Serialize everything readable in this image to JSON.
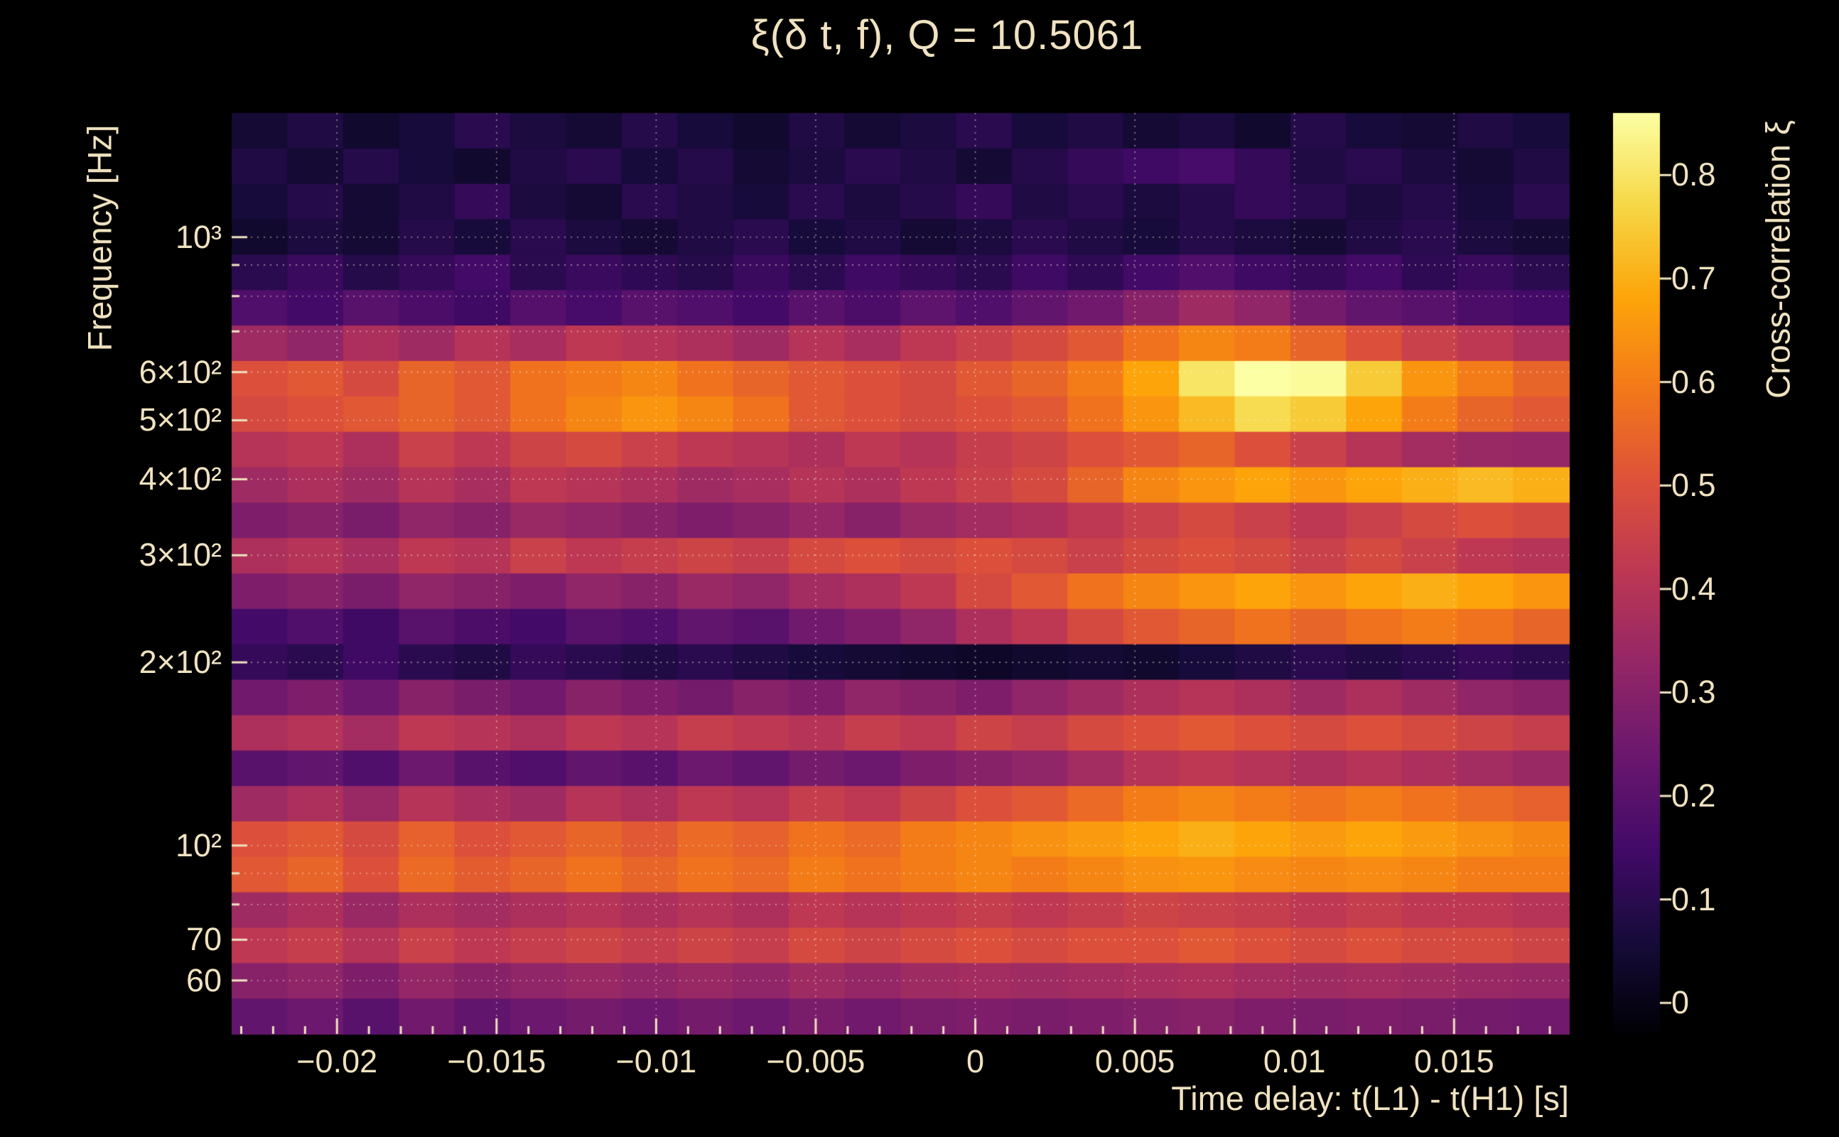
{
  "colors": {
    "background": "#000000",
    "text": "#f0e2c0",
    "grid": "rgba(250,242,222,0.55)"
  },
  "chart_data": {
    "type": "heatmap",
    "title": "ξ(δ t, f), Q = 10.5061",
    "q_value": 10.5061,
    "xlabel": "Time delay: t(L1) - t(H1) [s]",
    "ylabel": "Frequency [Hz]",
    "colorbar_label": "Cross-correlation ξ",
    "y_scale": "log",
    "x_range": [
      -0.0233,
      0.0186
    ],
    "y_range_hz": [
      49,
      1600
    ],
    "color_range": [
      -0.03,
      0.86
    ],
    "x_ticks": [
      -0.02,
      -0.015,
      -0.01,
      -0.005,
      0,
      0.005,
      0.01,
      0.015
    ],
    "x_tick_labels": [
      "−0.02",
      "−0.015",
      "−0.01",
      "−0.005",
      "0",
      "0.005",
      "0.01",
      "0.015"
    ],
    "y_ticks": [
      1000,
      600,
      500,
      400,
      300,
      200,
      100,
      70,
      60
    ],
    "y_tick_labels": [
      "10³",
      "6×10²",
      "5×10²",
      "4×10²",
      "3×10²",
      "2×10²",
      "10²",
      "70",
      "60"
    ],
    "y_gridlines": [
      60,
      70,
      80,
      90,
      100,
      200,
      300,
      400,
      500,
      600,
      700,
      800,
      900,
      1000
    ],
    "colorbar_ticks": [
      0,
      0.1,
      0.2,
      0.3,
      0.4,
      0.5,
      0.6,
      0.7,
      0.8
    ],
    "colorbar_tick_labels": [
      "0",
      "0.1",
      "0.2",
      "0.3",
      "0.4",
      "0.5",
      "0.6",
      "0.7",
      "0.8"
    ],
    "colormap": "inferno",
    "colormap_stops": [
      [
        0.0,
        [
          0,
          0,
          4
        ]
      ],
      [
        0.1,
        [
          22,
          11,
          57
        ]
      ],
      [
        0.2,
        [
          66,
          10,
          104
        ]
      ],
      [
        0.3,
        [
          106,
          23,
          110
        ]
      ],
      [
        0.4,
        [
          147,
          38,
          103
        ]
      ],
      [
        0.5,
        [
          188,
          55,
          84
        ]
      ],
      [
        0.6,
        [
          221,
          81,
          58
        ]
      ],
      [
        0.7,
        [
          243,
          120,
          25
        ]
      ],
      [
        0.8,
        [
          252,
          165,
          10
        ]
      ],
      [
        0.9,
        [
          246,
          215,
          70
        ]
      ],
      [
        1.0,
        [
          252,
          255,
          164
        ]
      ]
    ],
    "freq_row_centers_hz": [
      1496,
      1309,
      1144,
      1001,
      875,
      765,
      669,
      585,
      512,
      448,
      391,
      342,
      299,
      262,
      229,
      200,
      175,
      153,
      134,
      117,
      102,
      90,
      78,
      69,
      60,
      52
    ],
    "time_col_centers_s": [
      -0.02243,
      -0.02068,
      -0.01894,
      -0.01719,
      -0.01544,
      -0.0137,
      -0.01195,
      -0.01021,
      -0.00846,
      -0.00671,
      -0.00497,
      -0.00322,
      -0.00148,
      0.00027,
      0.00202,
      0.00376,
      0.00551,
      0.00725,
      0.009,
      0.01075,
      0.01249,
      0.01424,
      0.01598,
      0.01773
    ],
    "values": [
      [
        0.05,
        0.08,
        0.04,
        0.06,
        0.1,
        0.07,
        0.05,
        0.09,
        0.06,
        0.04,
        0.08,
        0.05,
        0.07,
        0.1,
        0.06,
        0.08,
        0.05,
        0.07,
        0.04,
        0.09,
        0.06,
        0.05,
        0.08,
        0.06
      ],
      [
        0.08,
        0.05,
        0.09,
        0.06,
        0.04,
        0.08,
        0.1,
        0.06,
        0.09,
        0.05,
        0.07,
        0.1,
        0.08,
        0.05,
        0.09,
        0.12,
        0.14,
        0.16,
        0.12,
        0.08,
        0.1,
        0.07,
        0.05,
        0.08
      ],
      [
        0.06,
        0.09,
        0.05,
        0.08,
        0.12,
        0.07,
        0.05,
        0.1,
        0.08,
        0.06,
        0.1,
        0.07,
        0.09,
        0.12,
        0.08,
        0.1,
        0.07,
        0.09,
        0.12,
        0.1,
        0.07,
        0.09,
        0.06,
        0.1
      ],
      [
        0.04,
        0.07,
        0.05,
        0.09,
        0.06,
        0.1,
        0.07,
        0.05,
        0.08,
        0.1,
        0.06,
        0.08,
        0.05,
        0.07,
        0.1,
        0.08,
        0.06,
        0.09,
        0.07,
        0.05,
        0.08,
        0.1,
        0.07,
        0.05
      ],
      [
        0.1,
        0.13,
        0.09,
        0.12,
        0.15,
        0.1,
        0.13,
        0.11,
        0.09,
        0.13,
        0.1,
        0.14,
        0.12,
        0.1,
        0.14,
        0.11,
        0.15,
        0.18,
        0.14,
        0.12,
        0.15,
        0.11,
        0.13,
        0.1
      ],
      [
        0.18,
        0.15,
        0.2,
        0.17,
        0.14,
        0.19,
        0.16,
        0.2,
        0.18,
        0.15,
        0.2,
        0.17,
        0.21,
        0.18,
        0.22,
        0.25,
        0.3,
        0.35,
        0.32,
        0.26,
        0.22,
        0.2,
        0.17,
        0.15
      ],
      [
        0.35,
        0.32,
        0.38,
        0.35,
        0.4,
        0.37,
        0.42,
        0.4,
        0.38,
        0.35,
        0.4,
        0.37,
        0.42,
        0.45,
        0.48,
        0.52,
        0.58,
        0.62,
        0.6,
        0.55,
        0.5,
        0.45,
        0.42,
        0.38
      ],
      [
        0.5,
        0.52,
        0.48,
        0.55,
        0.52,
        0.58,
        0.6,
        0.62,
        0.58,
        0.55,
        0.52,
        0.5,
        0.48,
        0.52,
        0.55,
        0.6,
        0.68,
        0.8,
        0.88,
        0.85,
        0.75,
        0.65,
        0.6,
        0.55
      ],
      [
        0.48,
        0.5,
        0.52,
        0.55,
        0.52,
        0.58,
        0.62,
        0.65,
        0.62,
        0.58,
        0.52,
        0.5,
        0.48,
        0.5,
        0.52,
        0.58,
        0.65,
        0.72,
        0.78,
        0.75,
        0.68,
        0.6,
        0.55,
        0.52
      ],
      [
        0.4,
        0.42,
        0.38,
        0.45,
        0.42,
        0.46,
        0.48,
        0.45,
        0.42,
        0.4,
        0.38,
        0.42,
        0.4,
        0.44,
        0.46,
        0.5,
        0.52,
        0.55,
        0.5,
        0.45,
        0.4,
        0.36,
        0.34,
        0.33
      ],
      [
        0.35,
        0.38,
        0.35,
        0.4,
        0.37,
        0.42,
        0.4,
        0.38,
        0.35,
        0.37,
        0.4,
        0.38,
        0.42,
        0.45,
        0.48,
        0.55,
        0.62,
        0.65,
        0.68,
        0.65,
        0.68,
        0.7,
        0.72,
        0.7
      ],
      [
        0.28,
        0.3,
        0.27,
        0.32,
        0.3,
        0.34,
        0.32,
        0.3,
        0.28,
        0.3,
        0.33,
        0.3,
        0.34,
        0.36,
        0.38,
        0.42,
        0.45,
        0.48,
        0.45,
        0.42,
        0.45,
        0.48,
        0.5,
        0.48
      ],
      [
        0.38,
        0.4,
        0.37,
        0.42,
        0.4,
        0.45,
        0.42,
        0.44,
        0.46,
        0.44,
        0.48,
        0.5,
        0.48,
        0.5,
        0.48,
        0.45,
        0.48,
        0.5,
        0.48,
        0.45,
        0.48,
        0.45,
        0.42,
        0.4
      ],
      [
        0.28,
        0.3,
        0.27,
        0.32,
        0.3,
        0.28,
        0.32,
        0.3,
        0.34,
        0.32,
        0.36,
        0.38,
        0.42,
        0.48,
        0.52,
        0.58,
        0.62,
        0.65,
        0.68,
        0.65,
        0.68,
        0.7,
        0.68,
        0.65
      ],
      [
        0.15,
        0.18,
        0.14,
        0.2,
        0.17,
        0.15,
        0.2,
        0.18,
        0.22,
        0.2,
        0.25,
        0.28,
        0.32,
        0.38,
        0.42,
        0.48,
        0.52,
        0.55,
        0.58,
        0.55,
        0.58,
        0.6,
        0.58,
        0.55
      ],
      [
        0.12,
        0.1,
        0.14,
        0.1,
        0.08,
        0.12,
        0.1,
        0.08,
        0.1,
        0.08,
        0.06,
        0.05,
        0.04,
        0.03,
        0.04,
        0.05,
        0.04,
        0.06,
        0.08,
        0.1,
        0.08,
        0.1,
        0.12,
        0.1
      ],
      [
        0.25,
        0.28,
        0.24,
        0.3,
        0.27,
        0.25,
        0.3,
        0.28,
        0.26,
        0.3,
        0.28,
        0.32,
        0.3,
        0.28,
        0.32,
        0.35,
        0.38,
        0.4,
        0.38,
        0.35,
        0.38,
        0.35,
        0.32,
        0.3
      ],
      [
        0.38,
        0.4,
        0.36,
        0.42,
        0.4,
        0.38,
        0.42,
        0.4,
        0.44,
        0.42,
        0.4,
        0.44,
        0.42,
        0.46,
        0.44,
        0.48,
        0.5,
        0.52,
        0.5,
        0.48,
        0.5,
        0.48,
        0.46,
        0.44
      ],
      [
        0.2,
        0.22,
        0.18,
        0.24,
        0.2,
        0.18,
        0.22,
        0.2,
        0.24,
        0.22,
        0.26,
        0.24,
        0.28,
        0.3,
        0.32,
        0.36,
        0.4,
        0.42,
        0.4,
        0.38,
        0.4,
        0.38,
        0.36,
        0.34
      ],
      [
        0.35,
        0.38,
        0.34,
        0.4,
        0.37,
        0.35,
        0.4,
        0.38,
        0.42,
        0.4,
        0.44,
        0.42,
        0.46,
        0.5,
        0.52,
        0.56,
        0.6,
        0.62,
        0.6,
        0.58,
        0.6,
        0.58,
        0.56,
        0.54
      ],
      [
        0.5,
        0.52,
        0.48,
        0.54,
        0.5,
        0.52,
        0.55,
        0.52,
        0.56,
        0.54,
        0.58,
        0.56,
        0.6,
        0.62,
        0.64,
        0.66,
        0.68,
        0.7,
        0.68,
        0.66,
        0.68,
        0.66,
        0.64,
        0.62
      ],
      [
        0.52,
        0.55,
        0.5,
        0.56,
        0.53,
        0.55,
        0.58,
        0.55,
        0.58,
        0.56,
        0.6,
        0.58,
        0.6,
        0.62,
        0.6,
        0.62,
        0.64,
        0.65,
        0.63,
        0.62,
        0.63,
        0.62,
        0.6,
        0.6
      ],
      [
        0.35,
        0.38,
        0.34,
        0.38,
        0.36,
        0.38,
        0.4,
        0.38,
        0.4,
        0.38,
        0.42,
        0.4,
        0.42,
        0.44,
        0.42,
        0.44,
        0.46,
        0.45,
        0.44,
        0.42,
        0.44,
        0.42,
        0.42,
        0.4
      ],
      [
        0.42,
        0.44,
        0.4,
        0.45,
        0.42,
        0.44,
        0.46,
        0.44,
        0.46,
        0.44,
        0.48,
        0.46,
        0.48,
        0.5,
        0.48,
        0.5,
        0.5,
        0.52,
        0.5,
        0.48,
        0.5,
        0.48,
        0.48,
        0.46
      ],
      [
        0.3,
        0.32,
        0.28,
        0.33,
        0.3,
        0.32,
        0.34,
        0.32,
        0.34,
        0.32,
        0.35,
        0.33,
        0.35,
        0.36,
        0.35,
        0.36,
        0.37,
        0.38,
        0.36,
        0.35,
        0.36,
        0.35,
        0.34,
        0.33
      ],
      [
        0.22,
        0.24,
        0.2,
        0.25,
        0.22,
        0.24,
        0.26,
        0.24,
        0.26,
        0.24,
        0.27,
        0.25,
        0.27,
        0.28,
        0.27,
        0.28,
        0.29,
        0.3,
        0.28,
        0.27,
        0.28,
        0.27,
        0.26,
        0.25
      ]
    ]
  }
}
